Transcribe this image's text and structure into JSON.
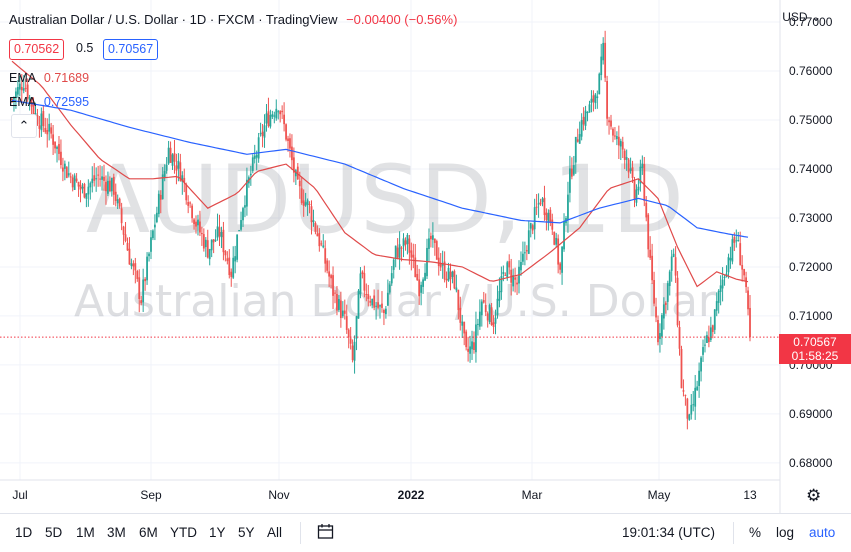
{
  "header": {
    "title": "Australian Dollar / U.S. Dollar · 1D · FXCM · TradingView",
    "change": "−0.00400 (−0.56%)",
    "bid": "0.70562",
    "spread": "0.5",
    "ask": "0.70567",
    "currency": "USD",
    "currency_caret": "⌄"
  },
  "indicators": [
    {
      "label": "EMA",
      "value": "0.71689",
      "color": "#e04a4a"
    },
    {
      "label": "EMA",
      "value": "0.72595",
      "color": "#2962ff"
    }
  ],
  "collapse_icon": "chevron-up-icon",
  "watermark": {
    "symbol": "AUDUSD, 1D",
    "name": "Australian Dollar / U.S. Dollar"
  },
  "price_tag": {
    "price": "0.70567",
    "countdown": "01:58:25"
  },
  "toolbar": {
    "ranges": [
      "1D",
      "5D",
      "1M",
      "3M",
      "6M",
      "YTD",
      "1Y",
      "5Y",
      "All"
    ],
    "compare_icon": "calendar-range-icon",
    "time": "19:01:34 (UTC)",
    "percent": "%",
    "log": "log",
    "auto": "auto"
  },
  "settings_icon": "gear-icon",
  "colors": {
    "up": "#26a69a",
    "down": "#ef5350",
    "ema_fast": "#e04a4a",
    "ema_slow": "#2962ff",
    "accent": "#2962ff"
  },
  "chart_data": {
    "type": "candlestick",
    "x_ticks": [
      "Jul",
      "Sep",
      "Nov",
      "2022",
      "Mar",
      "May",
      "13"
    ],
    "y_ticks": [
      "0.77000",
      "0.76000",
      "0.75000",
      "0.74000",
      "0.73000",
      "0.72000",
      "0.71000",
      "0.70000",
      "0.69000",
      "0.68000"
    ],
    "ylim": [
      0.6765,
      0.7745
    ],
    "last_price": 0.70567,
    "close_path": [
      {
        "t": 0,
        "v": 0.7542
      },
      {
        "t": 6,
        "v": 0.758
      },
      {
        "t": 12,
        "v": 0.751
      },
      {
        "t": 20,
        "v": 0.747
      },
      {
        "t": 28,
        "v": 0.7395
      },
      {
        "t": 36,
        "v": 0.7355
      },
      {
        "t": 44,
        "v": 0.7385
      },
      {
        "t": 52,
        "v": 0.736
      },
      {
        "t": 60,
        "v": 0.722
      },
      {
        "t": 66,
        "v": 0.7135
      },
      {
        "t": 72,
        "v": 0.727
      },
      {
        "t": 80,
        "v": 0.744
      },
      {
        "t": 86,
        "v": 0.7395
      },
      {
        "t": 94,
        "v": 0.729
      },
      {
        "t": 100,
        "v": 0.7235
      },
      {
        "t": 106,
        "v": 0.727
      },
      {
        "t": 112,
        "v": 0.719
      },
      {
        "t": 118,
        "v": 0.733
      },
      {
        "t": 124,
        "v": 0.742
      },
      {
        "t": 130,
        "v": 0.75
      },
      {
        "t": 136,
        "v": 0.7535
      },
      {
        "t": 140,
        "v": 0.747
      },
      {
        "t": 146,
        "v": 0.736
      },
      {
        "t": 152,
        "v": 0.732
      },
      {
        "t": 158,
        "v": 0.724
      },
      {
        "t": 164,
        "v": 0.715
      },
      {
        "t": 170,
        "v": 0.709
      },
      {
        "t": 174,
        "v": 0.7005
      },
      {
        "t": 178,
        "v": 0.7175
      },
      {
        "t": 184,
        "v": 0.713
      },
      {
        "t": 190,
        "v": 0.7105
      },
      {
        "t": 196,
        "v": 0.723
      },
      {
        "t": 202,
        "v": 0.725
      },
      {
        "t": 208,
        "v": 0.716
      },
      {
        "t": 214,
        "v": 0.7255
      },
      {
        "t": 220,
        "v": 0.7195
      },
      {
        "t": 226,
        "v": 0.717
      },
      {
        "t": 232,
        "v": 0.702
      },
      {
        "t": 236,
        "v": 0.7045
      },
      {
        "t": 240,
        "v": 0.713
      },
      {
        "t": 246,
        "v": 0.709
      },
      {
        "t": 252,
        "v": 0.72
      },
      {
        "t": 258,
        "v": 0.7165
      },
      {
        "t": 264,
        "v": 0.7265
      },
      {
        "t": 270,
        "v": 0.734
      },
      {
        "t": 276,
        "v": 0.729
      },
      {
        "t": 280,
        "v": 0.719
      },
      {
        "t": 284,
        "v": 0.736
      },
      {
        "t": 290,
        "v": 0.749
      },
      {
        "t": 296,
        "v": 0.753
      },
      {
        "t": 300,
        "v": 0.758
      },
      {
        "t": 302,
        "v": 0.764
      },
      {
        "t": 304,
        "v": 0.752
      },
      {
        "t": 308,
        "v": 0.746
      },
      {
        "t": 314,
        "v": 0.743
      },
      {
        "t": 318,
        "v": 0.734
      },
      {
        "t": 322,
        "v": 0.74
      },
      {
        "t": 326,
        "v": 0.72
      },
      {
        "t": 330,
        "v": 0.706
      },
      {
        "t": 334,
        "v": 0.714
      },
      {
        "t": 338,
        "v": 0.723
      },
      {
        "t": 342,
        "v": 0.696
      },
      {
        "t": 346,
        "v": 0.688
      },
      {
        "t": 350,
        "v": 0.696
      },
      {
        "t": 354,
        "v": 0.704
      },
      {
        "t": 358,
        "v": 0.708
      },
      {
        "t": 362,
        "v": 0.716
      },
      {
        "t": 366,
        "v": 0.722
      },
      {
        "t": 370,
        "v": 0.726
      },
      {
        "t": 374,
        "v": 0.718
      },
      {
        "t": 377,
        "v": 0.7057
      }
    ],
    "ema_fast": [
      {
        "t": 0,
        "v": 0.762
      },
      {
        "t": 15,
        "v": 0.757
      },
      {
        "t": 30,
        "v": 0.749
      },
      {
        "t": 45,
        "v": 0.742
      },
      {
        "t": 60,
        "v": 0.738
      },
      {
        "t": 72,
        "v": 0.738
      },
      {
        "t": 85,
        "v": 0.7385
      },
      {
        "t": 100,
        "v": 0.732
      },
      {
        "t": 115,
        "v": 0.735
      },
      {
        "t": 125,
        "v": 0.7395
      },
      {
        "t": 140,
        "v": 0.741
      },
      {
        "t": 155,
        "v": 0.736
      },
      {
        "t": 170,
        "v": 0.727
      },
      {
        "t": 185,
        "v": 0.7225
      },
      {
        "t": 200,
        "v": 0.7215
      },
      {
        "t": 215,
        "v": 0.721
      },
      {
        "t": 230,
        "v": 0.72
      },
      {
        "t": 245,
        "v": 0.717
      },
      {
        "t": 260,
        "v": 0.7185
      },
      {
        "t": 275,
        "v": 0.723
      },
      {
        "t": 290,
        "v": 0.728
      },
      {
        "t": 305,
        "v": 0.736
      },
      {
        "t": 320,
        "v": 0.738
      },
      {
        "t": 330,
        "v": 0.734
      },
      {
        "t": 340,
        "v": 0.724
      },
      {
        "t": 350,
        "v": 0.716
      },
      {
        "t": 360,
        "v": 0.719
      },
      {
        "t": 370,
        "v": 0.7175
      },
      {
        "t": 377,
        "v": 0.7169
      }
    ],
    "ema_slow": [
      {
        "t": 0,
        "v": 0.754
      },
      {
        "t": 30,
        "v": 0.752
      },
      {
        "t": 60,
        "v": 0.7485
      },
      {
        "t": 90,
        "v": 0.7455
      },
      {
        "t": 120,
        "v": 0.743
      },
      {
        "t": 140,
        "v": 0.744
      },
      {
        "t": 170,
        "v": 0.741
      },
      {
        "t": 200,
        "v": 0.736
      },
      {
        "t": 230,
        "v": 0.732
      },
      {
        "t": 260,
        "v": 0.7295
      },
      {
        "t": 280,
        "v": 0.729
      },
      {
        "t": 300,
        "v": 0.732
      },
      {
        "t": 320,
        "v": 0.734
      },
      {
        "t": 335,
        "v": 0.7325
      },
      {
        "t": 350,
        "v": 0.728
      },
      {
        "t": 365,
        "v": 0.7268
      },
      {
        "t": 377,
        "v": 0.726
      }
    ]
  }
}
